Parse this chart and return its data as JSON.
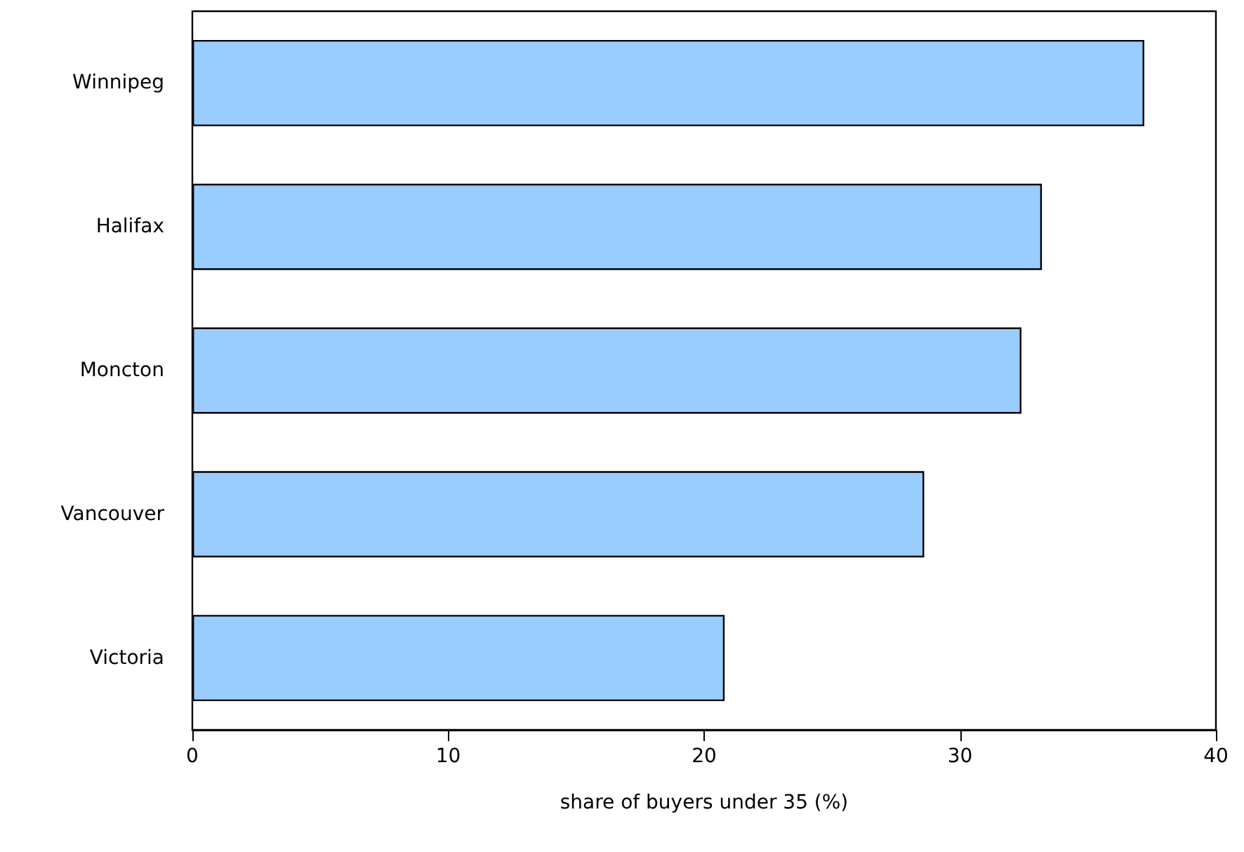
{
  "chart_data": {
    "type": "bar",
    "orientation": "horizontal",
    "categories": [
      "Winnipeg",
      "Halifax",
      "Moncton",
      "Vancouver",
      "Victoria"
    ],
    "values": [
      37.2,
      33.2,
      32.4,
      28.6,
      20.8
    ],
    "color": "#99ccff",
    "xlabel": "share of buyers under 35 (%)",
    "xlim": [
      0,
      40
    ],
    "xticks": [
      0,
      10,
      20,
      30,
      40
    ],
    "grid": false
  }
}
